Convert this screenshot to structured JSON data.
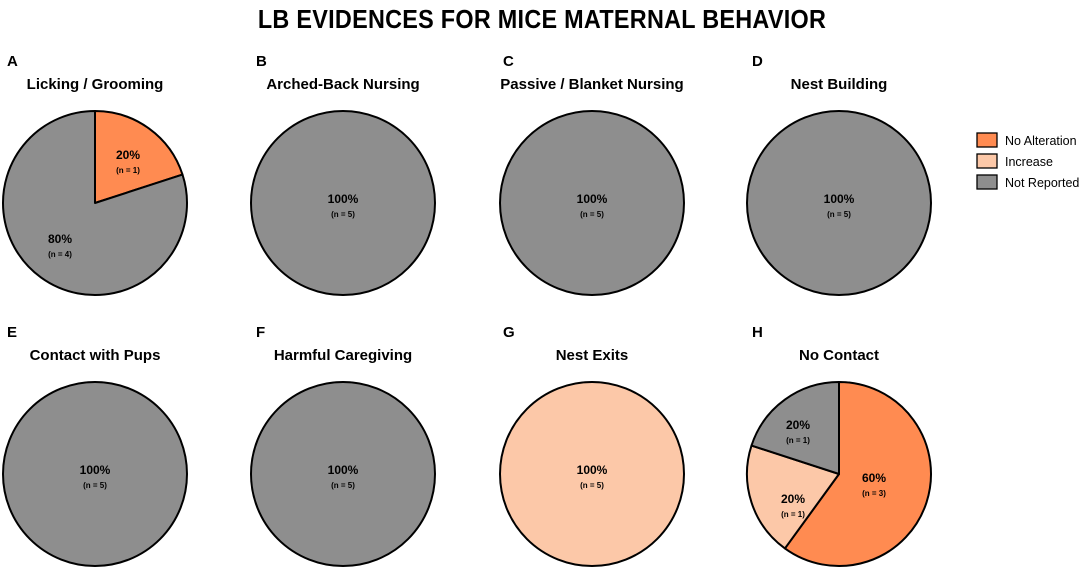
{
  "title": "LB EVIDENCES FOR MICE MATERNAL BEHAVIOR",
  "colors": {
    "No Alteration": "#ff8b51",
    "Increase": "#fcc8a8",
    "Not Reported": "#8e8e8e",
    "outline": "#000000"
  },
  "legend": {
    "position": "right",
    "entries": [
      "No Alteration",
      "Increase",
      "Not Reported"
    ]
  },
  "chart_data": [
    {
      "type": "pie",
      "letter": "A",
      "title": "Licking / Grooming",
      "slices": [
        {
          "category": "No Alteration",
          "percent": 20,
          "label": "20%",
          "count_label": "(n = 1)"
        },
        {
          "category": "Not Reported",
          "percent": 80,
          "label": "80%",
          "count_label": "(n = 4)"
        }
      ]
    },
    {
      "type": "pie",
      "letter": "B",
      "title": "Arched-Back Nursing",
      "slices": [
        {
          "category": "Not Reported",
          "percent": 100,
          "label": "100%",
          "count_label": "(n = 5)"
        }
      ]
    },
    {
      "type": "pie",
      "letter": "C",
      "title": "Passive / Blanket Nursing",
      "slices": [
        {
          "category": "Not Reported",
          "percent": 100,
          "label": "100%",
          "count_label": "(n = 5)"
        }
      ]
    },
    {
      "type": "pie",
      "letter": "D",
      "title": "Nest Building",
      "slices": [
        {
          "category": "Not Reported",
          "percent": 100,
          "label": "100%",
          "count_label": "(n = 5)"
        }
      ]
    },
    {
      "type": "pie",
      "letter": "E",
      "title": "Contact with Pups",
      "slices": [
        {
          "category": "Not Reported",
          "percent": 100,
          "label": "100%",
          "count_label": "(n = 5)"
        }
      ]
    },
    {
      "type": "pie",
      "letter": "F",
      "title": "Harmful Caregiving",
      "slices": [
        {
          "category": "Not Reported",
          "percent": 100,
          "label": "100%",
          "count_label": "(n = 5)"
        }
      ]
    },
    {
      "type": "pie",
      "letter": "G",
      "title": "Nest Exits",
      "slices": [
        {
          "category": "Increase",
          "percent": 100,
          "label": "100%",
          "count_label": "(n = 5)"
        }
      ]
    },
    {
      "type": "pie",
      "letter": "H",
      "title": "No Contact",
      "slices": [
        {
          "category": "No Alteration",
          "percent": 60,
          "label": "60%",
          "count_label": "(n = 3)"
        },
        {
          "category": "Increase",
          "percent": 20,
          "label": "20%",
          "count_label": "(n = 1)"
        },
        {
          "category": "Not Reported",
          "percent": 20,
          "label": "20%",
          "count_label": "(n = 1)"
        }
      ]
    }
  ]
}
